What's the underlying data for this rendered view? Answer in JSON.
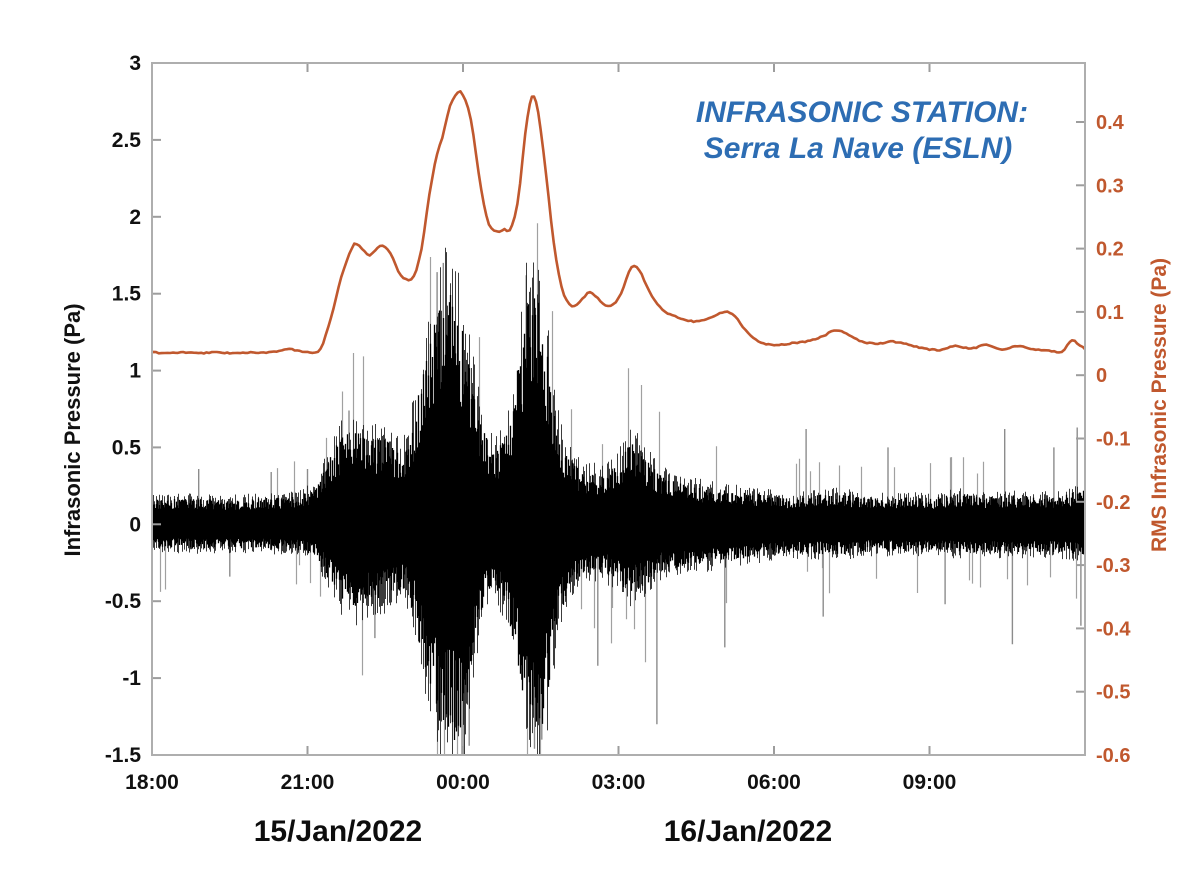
{
  "chart_data": {
    "type": "line",
    "title_lines": [
      "INFRASONIC STATION:",
      "Serra La Nave (ESLN)"
    ],
    "title_color": "#2d6db3",
    "x_axis": {
      "range_hours": [
        0,
        18
      ],
      "ticks": [
        {
          "hour": 0,
          "label": "18:00"
        },
        {
          "hour": 3,
          "label": "21:00"
        },
        {
          "hour": 6,
          "label": "00:00"
        },
        {
          "hour": 9,
          "label": "03:00"
        },
        {
          "hour": 12,
          "label": "06:00"
        },
        {
          "hour": 15,
          "label": "09:00"
        }
      ],
      "date_labels": [
        {
          "text": "15/Jan/2022",
          "hour": 3.59
        },
        {
          "text": "16/Jan/2022",
          "hour": 11.5
        }
      ]
    },
    "left_axis": {
      "label": "Infrasonic Pressure (Pa)",
      "range": [
        -1.5,
        3
      ],
      "color": "#111111",
      "ticks": [
        {
          "value": 3,
          "label": "3"
        },
        {
          "value": 2.5,
          "label": "2.5"
        },
        {
          "value": 2,
          "label": "2"
        },
        {
          "value": 1.5,
          "label": "1.5"
        },
        {
          "value": 1,
          "label": "1"
        },
        {
          "value": 0.5,
          "label": "0.5"
        },
        {
          "value": 0,
          "label": "0"
        },
        {
          "value": -0.5,
          "label": "-0.5"
        },
        {
          "value": -1,
          "label": "-1"
        },
        {
          "value": -1.5,
          "label": "-1.5"
        }
      ]
    },
    "right_axis": {
      "label": "RMS Infrasonic Pressure (Pa)",
      "range": [
        -0.6,
        0.49
      ],
      "color": "#c0582e",
      "ticks": [
        {
          "value": 0.4,
          "label": "0.4"
        },
        {
          "value": 0.3,
          "label": "0.3"
        },
        {
          "value": 0.2,
          "label": "0.2"
        },
        {
          "value": 0.1,
          "label": "0.1"
        },
        {
          "value": 0,
          "label": "0"
        },
        {
          "value": -0.1,
          "label": "-0.1"
        },
        {
          "value": -0.2,
          "label": "-0.2"
        },
        {
          "value": -0.3,
          "label": "-0.3"
        },
        {
          "value": -0.4,
          "label": "-0.4"
        },
        {
          "value": -0.5,
          "label": "-0.5"
        },
        {
          "value": -0.6,
          "label": "-0.6"
        }
      ]
    },
    "rms_series": {
      "name": "RMS infrasonic pressure",
      "axis": "right",
      "color": "#c0582e",
      "points": [
        [
          0,
          0.036
        ],
        [
          0.3,
          0.035
        ],
        [
          0.6,
          0.036
        ],
        [
          0.9,
          0.035
        ],
        [
          1.2,
          0.036
        ],
        [
          1.5,
          0.035
        ],
        [
          1.8,
          0.036
        ],
        [
          2.1,
          0.035
        ],
        [
          2.4,
          0.038
        ],
        [
          2.65,
          0.041
        ],
        [
          2.85,
          0.038
        ],
        [
          3.05,
          0.036
        ],
        [
          3.25,
          0.042
        ],
        [
          3.45,
          0.09
        ],
        [
          3.65,
          0.155
        ],
        [
          3.85,
          0.2
        ],
        [
          3.95,
          0.207
        ],
        [
          4.1,
          0.196
        ],
        [
          4.2,
          0.19
        ],
        [
          4.35,
          0.201
        ],
        [
          4.45,
          0.205
        ],
        [
          4.6,
          0.192
        ],
        [
          4.75,
          0.165
        ],
        [
          4.9,
          0.151
        ],
        [
          5.05,
          0.157
        ],
        [
          5.2,
          0.2
        ],
        [
          5.35,
          0.285
        ],
        [
          5.5,
          0.35
        ],
        [
          5.6,
          0.375
        ],
        [
          5.75,
          0.425
        ],
        [
          5.9,
          0.447
        ],
        [
          6.0,
          0.443
        ],
        [
          6.15,
          0.405
        ],
        [
          6.3,
          0.32
        ],
        [
          6.45,
          0.252
        ],
        [
          6.55,
          0.232
        ],
        [
          6.7,
          0.226
        ],
        [
          6.8,
          0.231
        ],
        [
          6.9,
          0.228
        ],
        [
          7.05,
          0.27
        ],
        [
          7.2,
          0.38
        ],
        [
          7.33,
          0.44
        ],
        [
          7.45,
          0.415
        ],
        [
          7.6,
          0.32
        ],
        [
          7.75,
          0.21
        ],
        [
          7.9,
          0.14
        ],
        [
          8.05,
          0.112
        ],
        [
          8.2,
          0.112
        ],
        [
          8.35,
          0.125
        ],
        [
          8.45,
          0.131
        ],
        [
          8.6,
          0.122
        ],
        [
          8.75,
          0.11
        ],
        [
          8.9,
          0.112
        ],
        [
          9.05,
          0.13
        ],
        [
          9.25,
          0.171
        ],
        [
          9.4,
          0.166
        ],
        [
          9.55,
          0.14
        ],
        [
          9.75,
          0.112
        ],
        [
          9.95,
          0.098
        ],
        [
          10.2,
          0.09
        ],
        [
          10.5,
          0.085
        ],
        [
          10.8,
          0.092
        ],
        [
          11.05,
          0.1
        ],
        [
          11.25,
          0.093
        ],
        [
          11.5,
          0.066
        ],
        [
          11.75,
          0.052
        ],
        [
          12.0,
          0.048
        ],
        [
          12.3,
          0.05
        ],
        [
          12.6,
          0.053
        ],
        [
          12.9,
          0.06
        ],
        [
          13.2,
          0.071
        ],
        [
          13.45,
          0.063
        ],
        [
          13.7,
          0.053
        ],
        [
          14.0,
          0.05
        ],
        [
          14.3,
          0.053
        ],
        [
          14.6,
          0.048
        ],
        [
          14.9,
          0.042
        ],
        [
          15.2,
          0.04
        ],
        [
          15.5,
          0.046
        ],
        [
          15.8,
          0.042
        ],
        [
          16.1,
          0.048
        ],
        [
          16.4,
          0.041
        ],
        [
          16.7,
          0.046
        ],
        [
          17.0,
          0.041
        ],
        [
          17.3,
          0.039
        ],
        [
          17.55,
          0.037
        ],
        [
          17.75,
          0.056
        ],
        [
          17.85,
          0.05
        ],
        [
          18.0,
          0.042
        ]
      ]
    },
    "waveform_series": {
      "name": "Raw infrasonic pressure",
      "axis": "left",
      "color": "#000000",
      "noise_seed": 20220115,
      "envelope": [
        [
          0,
          0.16,
          0.15
        ],
        [
          0.7,
          0.17,
          0.16
        ],
        [
          1.4,
          0.16,
          0.16
        ],
        [
          2.1,
          0.17,
          0.16
        ],
        [
          2.8,
          0.18,
          0.17
        ],
        [
          3.15,
          0.24,
          0.21
        ],
        [
          3.45,
          0.46,
          0.4
        ],
        [
          3.7,
          0.6,
          0.52
        ],
        [
          3.95,
          0.62,
          0.55
        ],
        [
          4.25,
          0.55,
          0.5
        ],
        [
          4.55,
          0.56,
          0.48
        ],
        [
          4.85,
          0.48,
          0.42
        ],
        [
          5.05,
          0.7,
          0.62
        ],
        [
          5.3,
          1.15,
          1.0
        ],
        [
          5.55,
          1.5,
          1.3
        ],
        [
          5.75,
          1.58,
          1.38
        ],
        [
          5.95,
          1.32,
          1.48
        ],
        [
          6.15,
          1.0,
          0.95
        ],
        [
          6.4,
          0.6,
          0.52
        ],
        [
          6.6,
          0.46,
          0.42
        ],
        [
          6.85,
          0.6,
          0.55
        ],
        [
          7.05,
          1.05,
          0.95
        ],
        [
          7.25,
          1.52,
          1.35
        ],
        [
          7.45,
          1.45,
          1.42
        ],
        [
          7.6,
          1.15,
          1.2
        ],
        [
          7.8,
          0.7,
          0.72
        ],
        [
          8.0,
          0.45,
          0.44
        ],
        [
          8.3,
          0.34,
          0.32
        ],
        [
          8.7,
          0.33,
          0.31
        ],
        [
          9.0,
          0.42,
          0.38
        ],
        [
          9.25,
          0.55,
          0.46
        ],
        [
          9.5,
          0.44,
          0.4
        ],
        [
          9.8,
          0.32,
          0.31
        ],
        [
          10.2,
          0.27,
          0.28
        ],
        [
          10.7,
          0.24,
          0.26
        ],
        [
          11.2,
          0.22,
          0.23
        ],
        [
          11.7,
          0.2,
          0.21
        ],
        [
          12.2,
          0.18,
          0.19
        ],
        [
          12.7,
          0.19,
          0.19
        ],
        [
          13.1,
          0.21,
          0.2
        ],
        [
          13.5,
          0.19,
          0.19
        ],
        [
          14.0,
          0.17,
          0.17
        ],
        [
          14.5,
          0.18,
          0.18
        ],
        [
          15.0,
          0.17,
          0.17
        ],
        [
          15.6,
          0.2,
          0.19
        ],
        [
          16.1,
          0.18,
          0.18
        ],
        [
          16.6,
          0.19,
          0.19
        ],
        [
          17.1,
          0.18,
          0.18
        ],
        [
          17.6,
          0.19,
          0.19
        ],
        [
          18.0,
          0.23,
          0.22
        ]
      ],
      "spikes": [
        [
          0.9,
          0.36
        ],
        [
          1.5,
          -0.34
        ],
        [
          2.3,
          0.34
        ],
        [
          3.0,
          0.36
        ],
        [
          3.8,
          0.74
        ],
        [
          4.3,
          -0.74
        ],
        [
          5.5,
          1.64
        ],
        [
          5.62,
          1.7
        ],
        [
          5.98,
          -1.5
        ],
        [
          6.12,
          -1.44
        ],
        [
          7.22,
          1.62
        ],
        [
          7.38,
          -1.46
        ],
        [
          7.52,
          -1.4
        ],
        [
          8.6,
          -0.92
        ],
        [
          9.74,
          -1.3
        ],
        [
          11.05,
          -0.8
        ],
        [
          12.62,
          0.62
        ],
        [
          12.95,
          -0.6
        ],
        [
          14.2,
          0.5
        ],
        [
          15.3,
          -0.52
        ],
        [
          16.45,
          0.62
        ],
        [
          16.6,
          -0.78
        ],
        [
          17.4,
          0.5
        ],
        [
          17.85,
          0.63
        ],
        [
          17.92,
          -0.66
        ]
      ]
    }
  }
}
